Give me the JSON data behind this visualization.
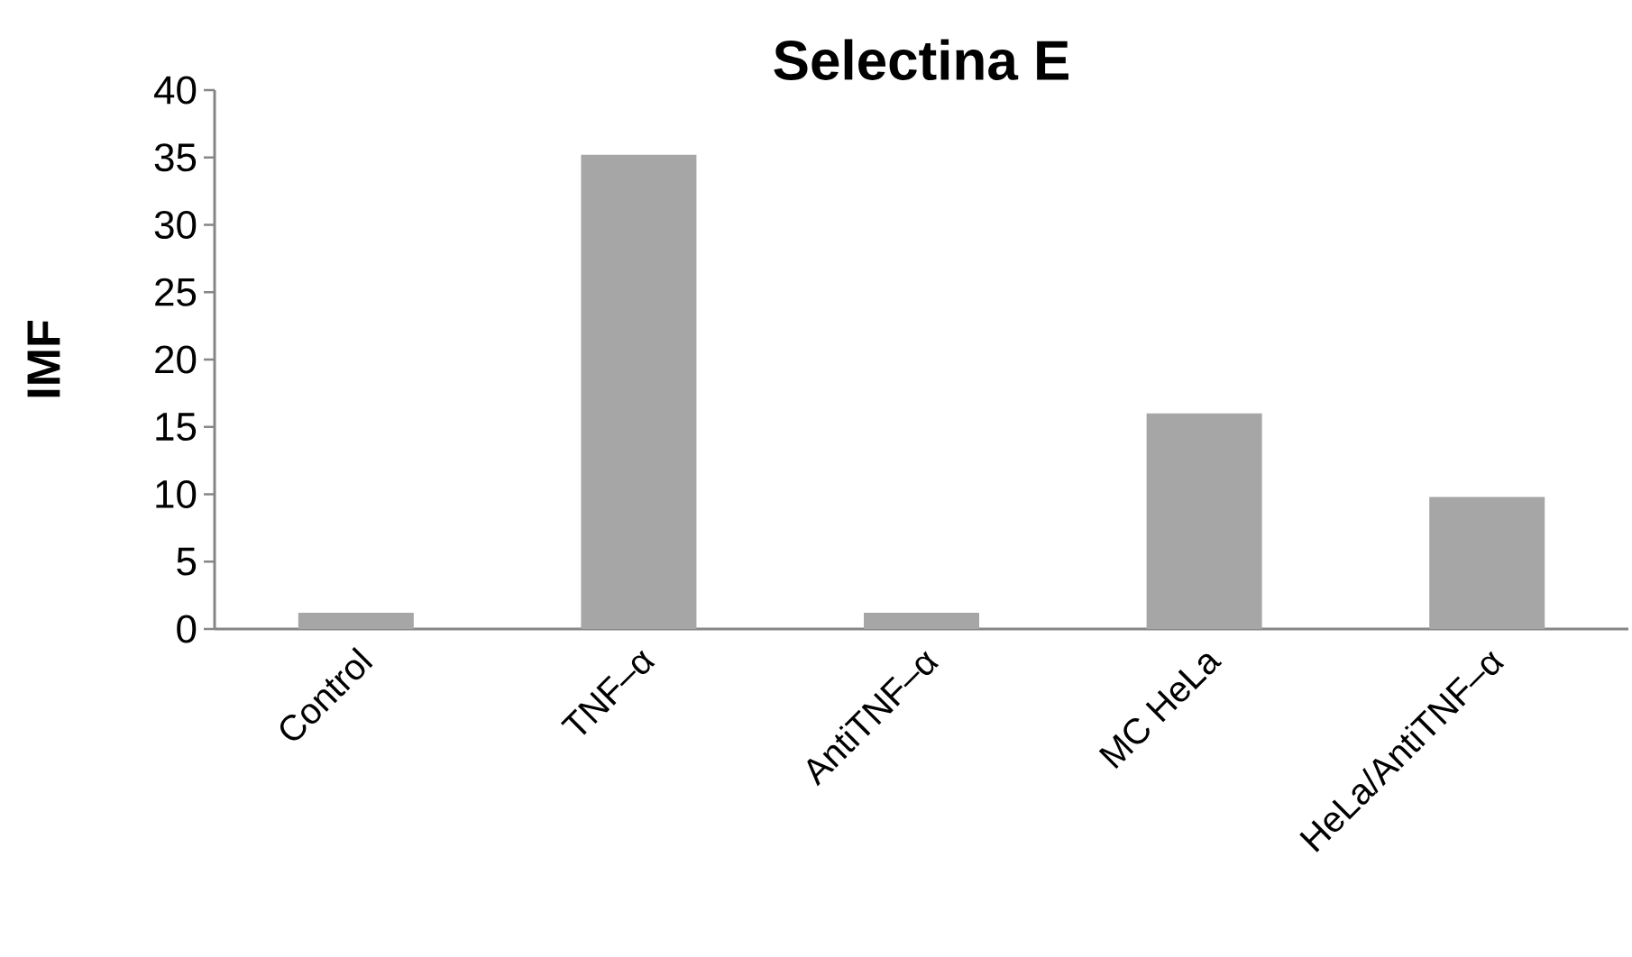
{
  "chart_data": {
    "type": "bar",
    "title": "Selectina E",
    "ylabel": "IMF",
    "categories": [
      "Control",
      "TNF–α",
      "AntiTNF–α",
      "MC HeLa",
      "HeLa/AntiTNF–α"
    ],
    "values": [
      1.2,
      35.2,
      1.2,
      16.0,
      9.8
    ],
    "color": "#a6a6a6",
    "ylim": [
      0,
      40
    ],
    "yticks": [
      0,
      5,
      10,
      15,
      20,
      25,
      30,
      35,
      40
    ],
    "grid": false
  }
}
